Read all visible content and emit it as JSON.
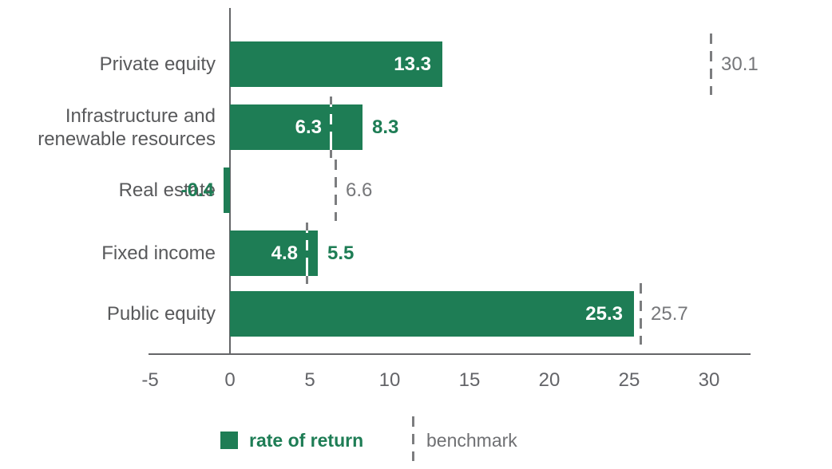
{
  "chart_data": {
    "type": "bar",
    "orientation": "horizontal",
    "title": "",
    "categories": [
      "Private equity",
      "Infrastructure and renewable resources",
      "Real estate",
      "Fixed income",
      "Public equity"
    ],
    "series": [
      {
        "name": "rate of return",
        "values": [
          13.3,
          8.3,
          -0.4,
          5.5,
          25.3
        ]
      },
      {
        "name": "benchmark",
        "values": [
          30.1,
          6.3,
          6.6,
          4.8,
          25.7
        ]
      }
    ],
    "return_value_labels": [
      "13.3",
      "8.3",
      "-0.4",
      "5.5",
      "25.3"
    ],
    "benchmark_value_labels": [
      "30.1",
      "6.3",
      "6.6",
      "4.8",
      "25.7"
    ],
    "x_ticks": [
      -5,
      0,
      5,
      10,
      15,
      20,
      25,
      30
    ],
    "x_tick_labels": [
      "-5",
      "0",
      "5",
      "10",
      "15",
      "20",
      "25",
      "30"
    ],
    "xlim": [
      -5.1,
      32.6
    ],
    "grid": false,
    "legend_position": "bottom"
  },
  "legend": {
    "return_label": "rate of return",
    "benchmark_label": "benchmark"
  },
  "colors": {
    "bar_green": "#1E7D55",
    "category_gray": "#58595B",
    "tick_gray": "#636468",
    "benchmark_label_gray": "#76777A",
    "dash_gray": "#7C7D7F",
    "axis_gray": "#646568",
    "inside_label_white": "#FFFFFF"
  }
}
